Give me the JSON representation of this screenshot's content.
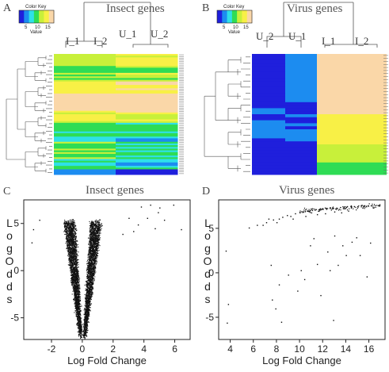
{
  "panels": {
    "A": {
      "label": "A",
      "title": "Insect genes",
      "columns": [
        "I_1",
        "I_2",
        "U_1",
        "U_2"
      ]
    },
    "B": {
      "label": "B",
      "title": "Virus genes",
      "columns": [
        "U_2",
        "U_1",
        "I_1",
        "I_2"
      ]
    },
    "C": {
      "label": "C",
      "title": "Insect genes"
    },
    "D": {
      "label": "D",
      "title": "Virus genes"
    }
  },
  "color_key": {
    "title": "Color Key",
    "xlabel": "Value",
    "ticks": [
      "5",
      "10",
      "15"
    ],
    "colors": [
      "#1f1fdc",
      "#1c8cf0",
      "#2ee0e8",
      "#2fdc55",
      "#c8f03a",
      "#f8f046",
      "#fad7a8"
    ]
  },
  "chart_data": [
    {
      "type": "heatmap",
      "panel": "A",
      "title": "Insect genes",
      "columns": [
        "I_1",
        "I_2",
        "U_1",
        "U_2"
      ],
      "value_range": [
        5,
        15
      ]
    },
    {
      "type": "heatmap",
      "panel": "B",
      "title": "Virus genes",
      "columns": [
        "U_2",
        "U_1",
        "I_1",
        "I_2"
      ],
      "value_range": [
        5,
        15
      ]
    },
    {
      "type": "scatter",
      "panel": "C",
      "title": "Insect genes",
      "shape": "volcano",
      "xlabel": "Log Fold Change",
      "ylabel": "LogOdds",
      "xlim": [
        -3.8,
        7
      ],
      "ylim": [
        -7.3,
        7.5
      ],
      "xticks": [
        -2,
        0,
        2,
        4,
        6
      ],
      "yticks": [
        5,
        0,
        -5
      ],
      "points": [
        [
          4.4,
          7.0
        ],
        [
          4.9,
          6.2
        ],
        [
          5.3,
          5.4
        ],
        [
          5.9,
          7.0
        ],
        [
          4.2,
          5.6
        ],
        [
          3.8,
          6.8
        ],
        [
          6.4,
          4.4
        ],
        [
          4.7,
          4.5
        ],
        [
          3.6,
          4.9
        ],
        [
          3.0,
          5.6
        ],
        [
          3.3,
          4.2
        ],
        [
          5.0,
          6.7
        ],
        [
          2.6,
          3.9
        ],
        [
          -2.8,
          5.4
        ],
        [
          -3.2,
          4.4
        ],
        [
          -3.3,
          3.0
        ]
      ]
    },
    {
      "type": "scatter",
      "panel": "D",
      "title": "Virus genes",
      "xlabel": "Log Fold Change",
      "ylabel": "LogOdds",
      "xlim": [
        3,
        17.4
      ],
      "ylim": [
        -7.5,
        8.2
      ],
      "xticks": [
        4,
        6,
        8,
        10,
        12,
        14,
        16
      ],
      "yticks": [
        5,
        0,
        -5
      ],
      "points": [
        [
          3.6,
          2.5
        ],
        [
          3.8,
          -3.5
        ],
        [
          3.7,
          -5.6
        ],
        [
          5.6,
          5.1
        ],
        [
          6.3,
          5.4
        ],
        [
          6.8,
          5.4
        ],
        [
          7.1,
          5.7
        ],
        [
          7.3,
          6.1
        ],
        [
          7.7,
          6.0
        ],
        [
          8.2,
          6.1
        ],
        [
          8.5,
          6.3
        ],
        [
          8.9,
          6.5
        ],
        [
          9.2,
          6.4
        ],
        [
          9.6,
          6.7
        ],
        [
          10.0,
          6.8
        ],
        [
          10.3,
          6.9
        ],
        [
          10.7,
          7.0
        ],
        [
          11.0,
          6.8
        ],
        [
          11.3,
          7.1
        ],
        [
          11.7,
          7.1
        ],
        [
          12.0,
          7.2
        ],
        [
          12.3,
          7.2
        ],
        [
          12.6,
          7.3
        ],
        [
          12.9,
          7.3
        ],
        [
          13.2,
          7.3
        ],
        [
          13.5,
          7.4
        ],
        [
          13.8,
          7.4
        ],
        [
          14.1,
          7.5
        ],
        [
          14.4,
          7.5
        ],
        [
          14.7,
          7.5
        ],
        [
          15.0,
          7.5
        ],
        [
          15.3,
          7.6
        ],
        [
          15.6,
          7.6
        ],
        [
          15.9,
          7.6
        ],
        [
          16.2,
          7.6
        ],
        [
          16.5,
          7.6
        ],
        [
          16.8,
          7.6
        ],
        [
          11.5,
          6.6
        ],
        [
          12.2,
          6.7
        ],
        [
          13.0,
          6.9
        ],
        [
          13.6,
          6.8
        ],
        [
          14.2,
          7.0
        ],
        [
          10.5,
          6.4
        ],
        [
          9.4,
          6.1
        ],
        [
          8.0,
          5.7
        ],
        [
          7.5,
          0.9
        ],
        [
          8.2,
          -1.3
        ],
        [
          7.6,
          -3.0
        ],
        [
          8.4,
          -5.5
        ],
        [
          9.8,
          -2.0
        ],
        [
          10.4,
          -0.7
        ],
        [
          10.9,
          3.1
        ],
        [
          11.5,
          1.0
        ],
        [
          11.8,
          -2.5
        ],
        [
          12.6,
          0.3
        ],
        [
          13.3,
          0.9
        ],
        [
          14.0,
          2.0
        ],
        [
          14.5,
          3.5
        ],
        [
          15.2,
          2.0
        ],
        [
          15.8,
          -0.4
        ],
        [
          12.9,
          -5.3
        ],
        [
          13.7,
          3.1
        ],
        [
          11.2,
          3.9
        ],
        [
          7.9,
          -4.0
        ],
        [
          10.1,
          0.3
        ],
        [
          12.4,
          2.4
        ],
        [
          14.9,
          4.0
        ],
        [
          16.1,
          3.4
        ],
        [
          9.0,
          -0.2
        ],
        [
          13.0,
          4.2
        ]
      ]
    }
  ]
}
